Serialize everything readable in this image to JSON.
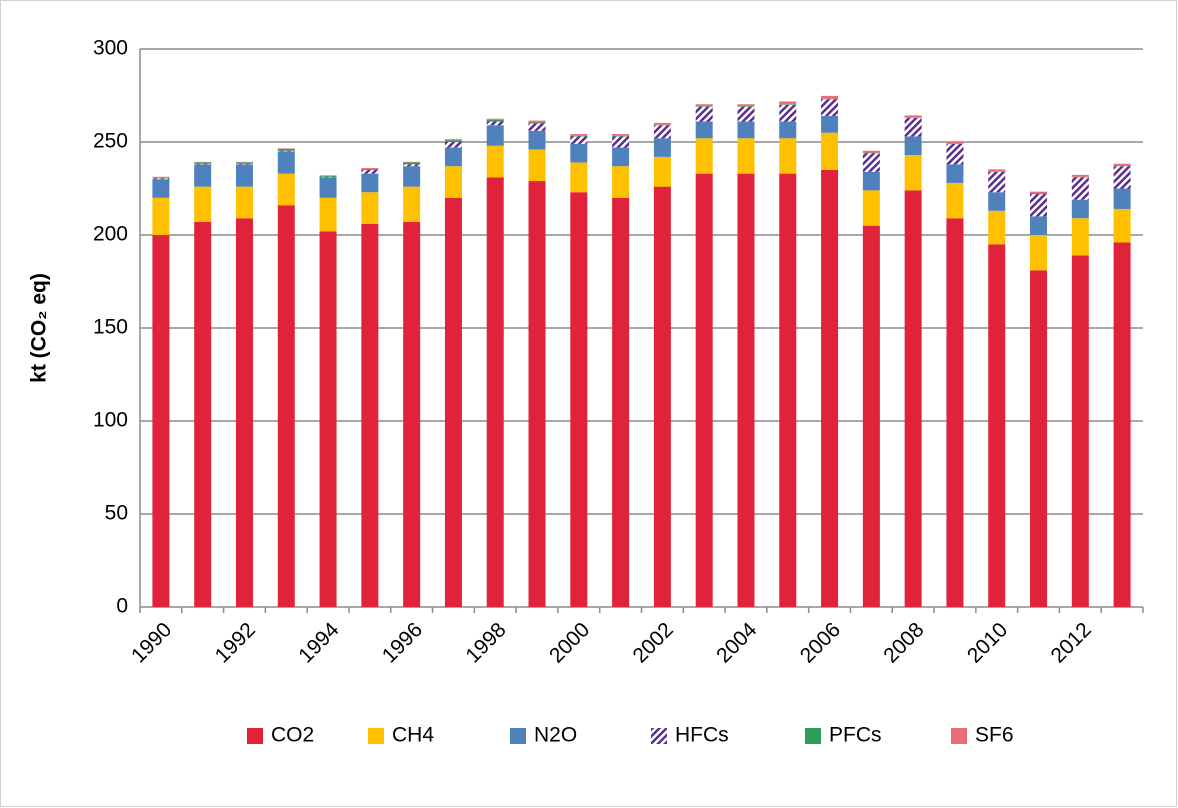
{
  "chart_data": {
    "type": "stacked-bar",
    "y_label": "kt (CO₂ eq)",
    "categories": [
      "1990",
      null,
      "1992",
      null,
      "1994",
      null,
      "1996",
      null,
      "1998",
      null,
      "2000",
      null,
      "2002",
      null,
      "2004",
      null,
      "2006",
      null,
      "2008",
      null,
      "2010",
      null,
      "2012",
      null
    ],
    "series": [
      {
        "name": "CO2",
        "color": "#e0233a",
        "values": [
          200,
          207,
          209,
          216,
          202,
          206,
          207,
          220,
          231,
          229,
          223,
          220,
          226,
          233,
          233,
          233,
          235,
          205,
          224,
          209,
          195,
          181,
          189,
          196
        ]
      },
      {
        "name": "CH4",
        "color": "#ffc000",
        "values": [
          20,
          19,
          17,
          17,
          18,
          17,
          19,
          17,
          17,
          17,
          16,
          17,
          16,
          19,
          19,
          19,
          20,
          19,
          19,
          19,
          18,
          19,
          20,
          18
        ]
      },
      {
        "name": "N2O",
        "color": "#4f81bd",
        "values": [
          10,
          12,
          12,
          12,
          11,
          10,
          11,
          10,
          11,
          10,
          10,
          10,
          10,
          9,
          9,
          9,
          9,
          10,
          10,
          10,
          10,
          10,
          10,
          11
        ]
      },
      {
        "name": "HFCs",
        "color": "#5b2d8e",
        "pattern": "hatch",
        "values": [
          0.5,
          0.3,
          0.3,
          0.3,
          0.3,
          2,
          1,
          3,
          2,
          4,
          4,
          6,
          7,
          8,
          8,
          9,
          9,
          10,
          10,
          11,
          11,
          12,
          12,
          12
        ]
      },
      {
        "name": "PFCs",
        "color": "#2e9e5b",
        "values": [
          0.3,
          0.8,
          0.8,
          1,
          0.5,
          0.5,
          1,
          1,
          1,
          0.5,
          0.3,
          0.3,
          0.3,
          0.3,
          0.3,
          0.3,
          0.3,
          0.3,
          0.3,
          0.3,
          0.3,
          0.3,
          0.3,
          0.3
        ]
      },
      {
        "name": "SF6",
        "color": "#f06a78",
        "values": [
          0.5,
          0.2,
          0.2,
          0.3,
          0.3,
          0.5,
          0.3,
          0.5,
          0.5,
          1,
          1,
          1,
          1,
          1,
          1,
          1.5,
          1.5,
          1,
          1,
          1,
          1,
          1,
          1,
          1
        ]
      }
    ],
    "ylim": [
      0,
      300
    ],
    "yticks": [
      0,
      50,
      100,
      150,
      200,
      250,
      300
    ],
    "grid": true,
    "legend": "bottom"
  }
}
